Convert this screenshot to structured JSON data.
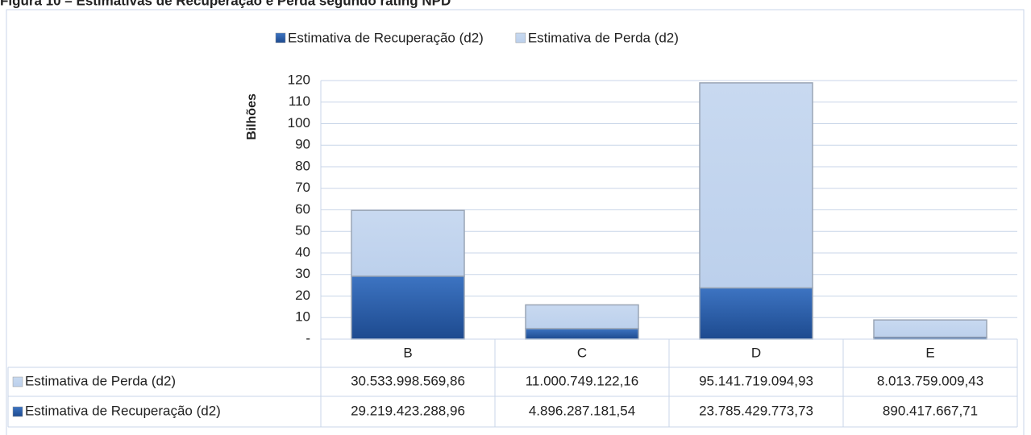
{
  "chart_data": {
    "type": "bar",
    "stacked": true,
    "title": "Figura 10 – Estimativas de Recuperação e Perda segundo rating NPD",
    "y_label": "Bilhões",
    "categories": [
      "B",
      "C",
      "D",
      "E"
    ],
    "series": [
      {
        "name": "Estimativa de Recuperação (d2)",
        "color": "#2a5ca6",
        "values": [
          29.21942328896,
          4.89628718154,
          23.78542977373,
          0.89041766771
        ],
        "value_labels": [
          "29.219.423.288,96",
          "4.896.287.181,54",
          "23.785.429.773,73",
          "890.417.667,71"
        ]
      },
      {
        "name": "Estimativa de Perda (d2)",
        "color": "#c3d5ee",
        "values": [
          30.53399856986,
          11.00074912216,
          95.14171909493,
          8.01375900943
        ],
        "value_labels": [
          "30.533.998.569,86",
          "11.000.749.122,16",
          "95.141.719.094,93",
          "8.013.759.009,43"
        ]
      }
    ],
    "ylim": [
      0,
      120
    ],
    "yticks": [
      {
        "value": 0,
        "label": "-"
      },
      10,
      20,
      30,
      40,
      50,
      60,
      70,
      80,
      90,
      100,
      110,
      120
    ],
    "grid": true
  }
}
